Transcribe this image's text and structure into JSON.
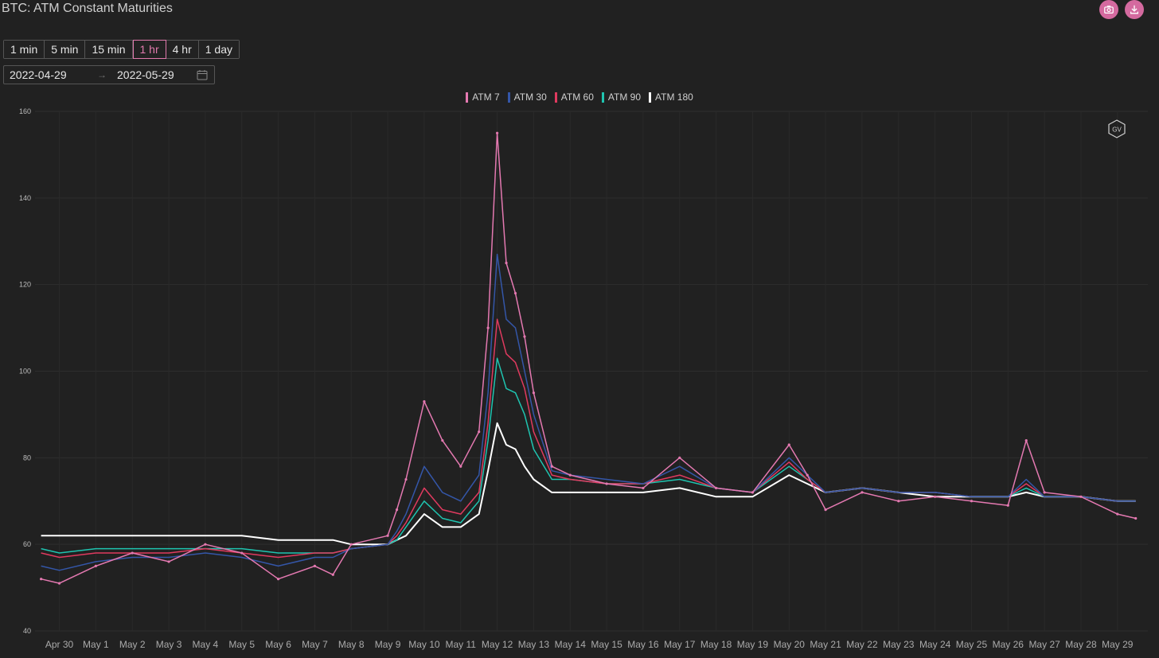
{
  "header": {
    "title": "BTC: ATM Constant Maturities"
  },
  "toolbar": {
    "camera_icon": "camera-icon",
    "download_icon": "download-icon",
    "accent_color": "#d46a9f"
  },
  "timeframes": [
    {
      "label": "1 min",
      "active": false
    },
    {
      "label": "5 min",
      "active": false
    },
    {
      "label": "15 min",
      "active": false
    },
    {
      "label": "1 hr",
      "active": true
    },
    {
      "label": "4 hr",
      "active": false
    },
    {
      "label": "1 day",
      "active": false
    }
  ],
  "date_range": {
    "start": "2022-04-29",
    "end": "2022-05-29",
    "icon": "calendar-icon"
  },
  "watermark": {
    "label": "GV"
  },
  "chart_data": {
    "type": "line",
    "title": "",
    "xlabel": "",
    "ylabel": "",
    "ylim": [
      40,
      160
    ],
    "yticks": [
      40,
      60,
      80,
      100,
      120,
      140,
      160
    ],
    "x_tick_labels": [
      "Apr 30",
      "May 1",
      "May 2",
      "May 3",
      "May 4",
      "May 5",
      "May 6",
      "May 7",
      "May 8",
      "May 9",
      "May 10",
      "May 11",
      "May 12",
      "May 13",
      "May 14",
      "May 15",
      "May 16",
      "May 17",
      "May 18",
      "May 19",
      "May 20",
      "May 21",
      "May 22",
      "May 23",
      "May 24",
      "May 25",
      "May 26",
      "May 27",
      "May 28",
      "May 29"
    ],
    "x": [
      "2022-04-29 12:00",
      "2022-04-30",
      "2022-05-01",
      "2022-05-02",
      "2022-05-03",
      "2022-05-04",
      "2022-05-05",
      "2022-05-06",
      "2022-05-07",
      "2022-05-07 12:00",
      "2022-05-08",
      "2022-05-09",
      "2022-05-09 06:00",
      "2022-05-09 12:00",
      "2022-05-10",
      "2022-05-10 12:00",
      "2022-05-11",
      "2022-05-11 12:00",
      "2022-05-11 18:00",
      "2022-05-12",
      "2022-05-12 06:00",
      "2022-05-12 12:00",
      "2022-05-12 18:00",
      "2022-05-13",
      "2022-05-13 12:00",
      "2022-05-14",
      "2022-05-15",
      "2022-05-16",
      "2022-05-17",
      "2022-05-18",
      "2022-05-19",
      "2022-05-20",
      "2022-05-20 12:00",
      "2022-05-21",
      "2022-05-22",
      "2022-05-23",
      "2022-05-24",
      "2022-05-25",
      "2022-05-26",
      "2022-05-26 12:00",
      "2022-05-27",
      "2022-05-28",
      "2022-05-29",
      "2022-05-29 12:00"
    ],
    "grid": true,
    "legend": "top-center",
    "series": [
      {
        "name": "ATM 7",
        "color": "#e479b1",
        "values": [
          52,
          51,
          55,
          58,
          56,
          60,
          58,
          52,
          55,
          53,
          60,
          62,
          68,
          75,
          93,
          84,
          78,
          86,
          110,
          155,
          125,
          118,
          108,
          95,
          78,
          76,
          74,
          73,
          80,
          73,
          72,
          83,
          76,
          68,
          72,
          70,
          71,
          70,
          69,
          84,
          72,
          71,
          67,
          66
        ]
      },
      {
        "name": "ATM 30",
        "color": "#3456a8",
        "values": [
          55,
          54,
          56,
          57,
          57,
          58,
          57,
          55,
          57,
          57,
          59,
          60,
          63,
          67,
          78,
          72,
          70,
          76,
          95,
          127,
          112,
          110,
          100,
          90,
          77,
          76,
          75,
          74,
          78,
          73,
          72,
          80,
          76,
          72,
          73,
          72,
          72,
          71,
          71,
          75,
          71,
          71,
          70,
          70
        ]
      },
      {
        "name": "ATM 60",
        "color": "#e03a5f",
        "values": [
          58,
          57,
          58,
          58,
          58,
          59,
          58,
          57,
          58,
          58,
          59,
          60,
          62,
          65,
          73,
          68,
          67,
          72,
          88,
          112,
          104,
          102,
          96,
          86,
          76,
          75,
          74,
          74,
          76,
          73,
          72,
          79,
          75,
          72,
          73,
          72,
          72,
          71,
          71,
          74,
          71,
          71,
          70,
          70
        ]
      },
      {
        "name": "ATM 90",
        "color": "#1fc4b0",
        "values": [
          59,
          58,
          59,
          59,
          59,
          59,
          59,
          58,
          58,
          58,
          59,
          60,
          61,
          64,
          70,
          66,
          65,
          70,
          84,
          103,
          96,
          95,
          90,
          82,
          75,
          75,
          74,
          74,
          75,
          73,
          72,
          78,
          75,
          72,
          73,
          72,
          72,
          71,
          71,
          73,
          71,
          71,
          70,
          70
        ]
      },
      {
        "name": "ATM 180",
        "color": "#ffffff",
        "values": [
          62,
          62,
          62,
          62,
          62,
          62,
          62,
          61,
          61,
          61,
          60,
          60,
          61,
          62,
          67,
          64,
          64,
          67,
          77,
          88,
          83,
          82,
          78,
          75,
          72,
          72,
          72,
          72,
          73,
          71,
          71,
          76,
          74,
          72,
          73,
          72,
          71,
          71,
          71,
          72,
          71,
          71,
          70,
          70
        ]
      }
    ]
  }
}
